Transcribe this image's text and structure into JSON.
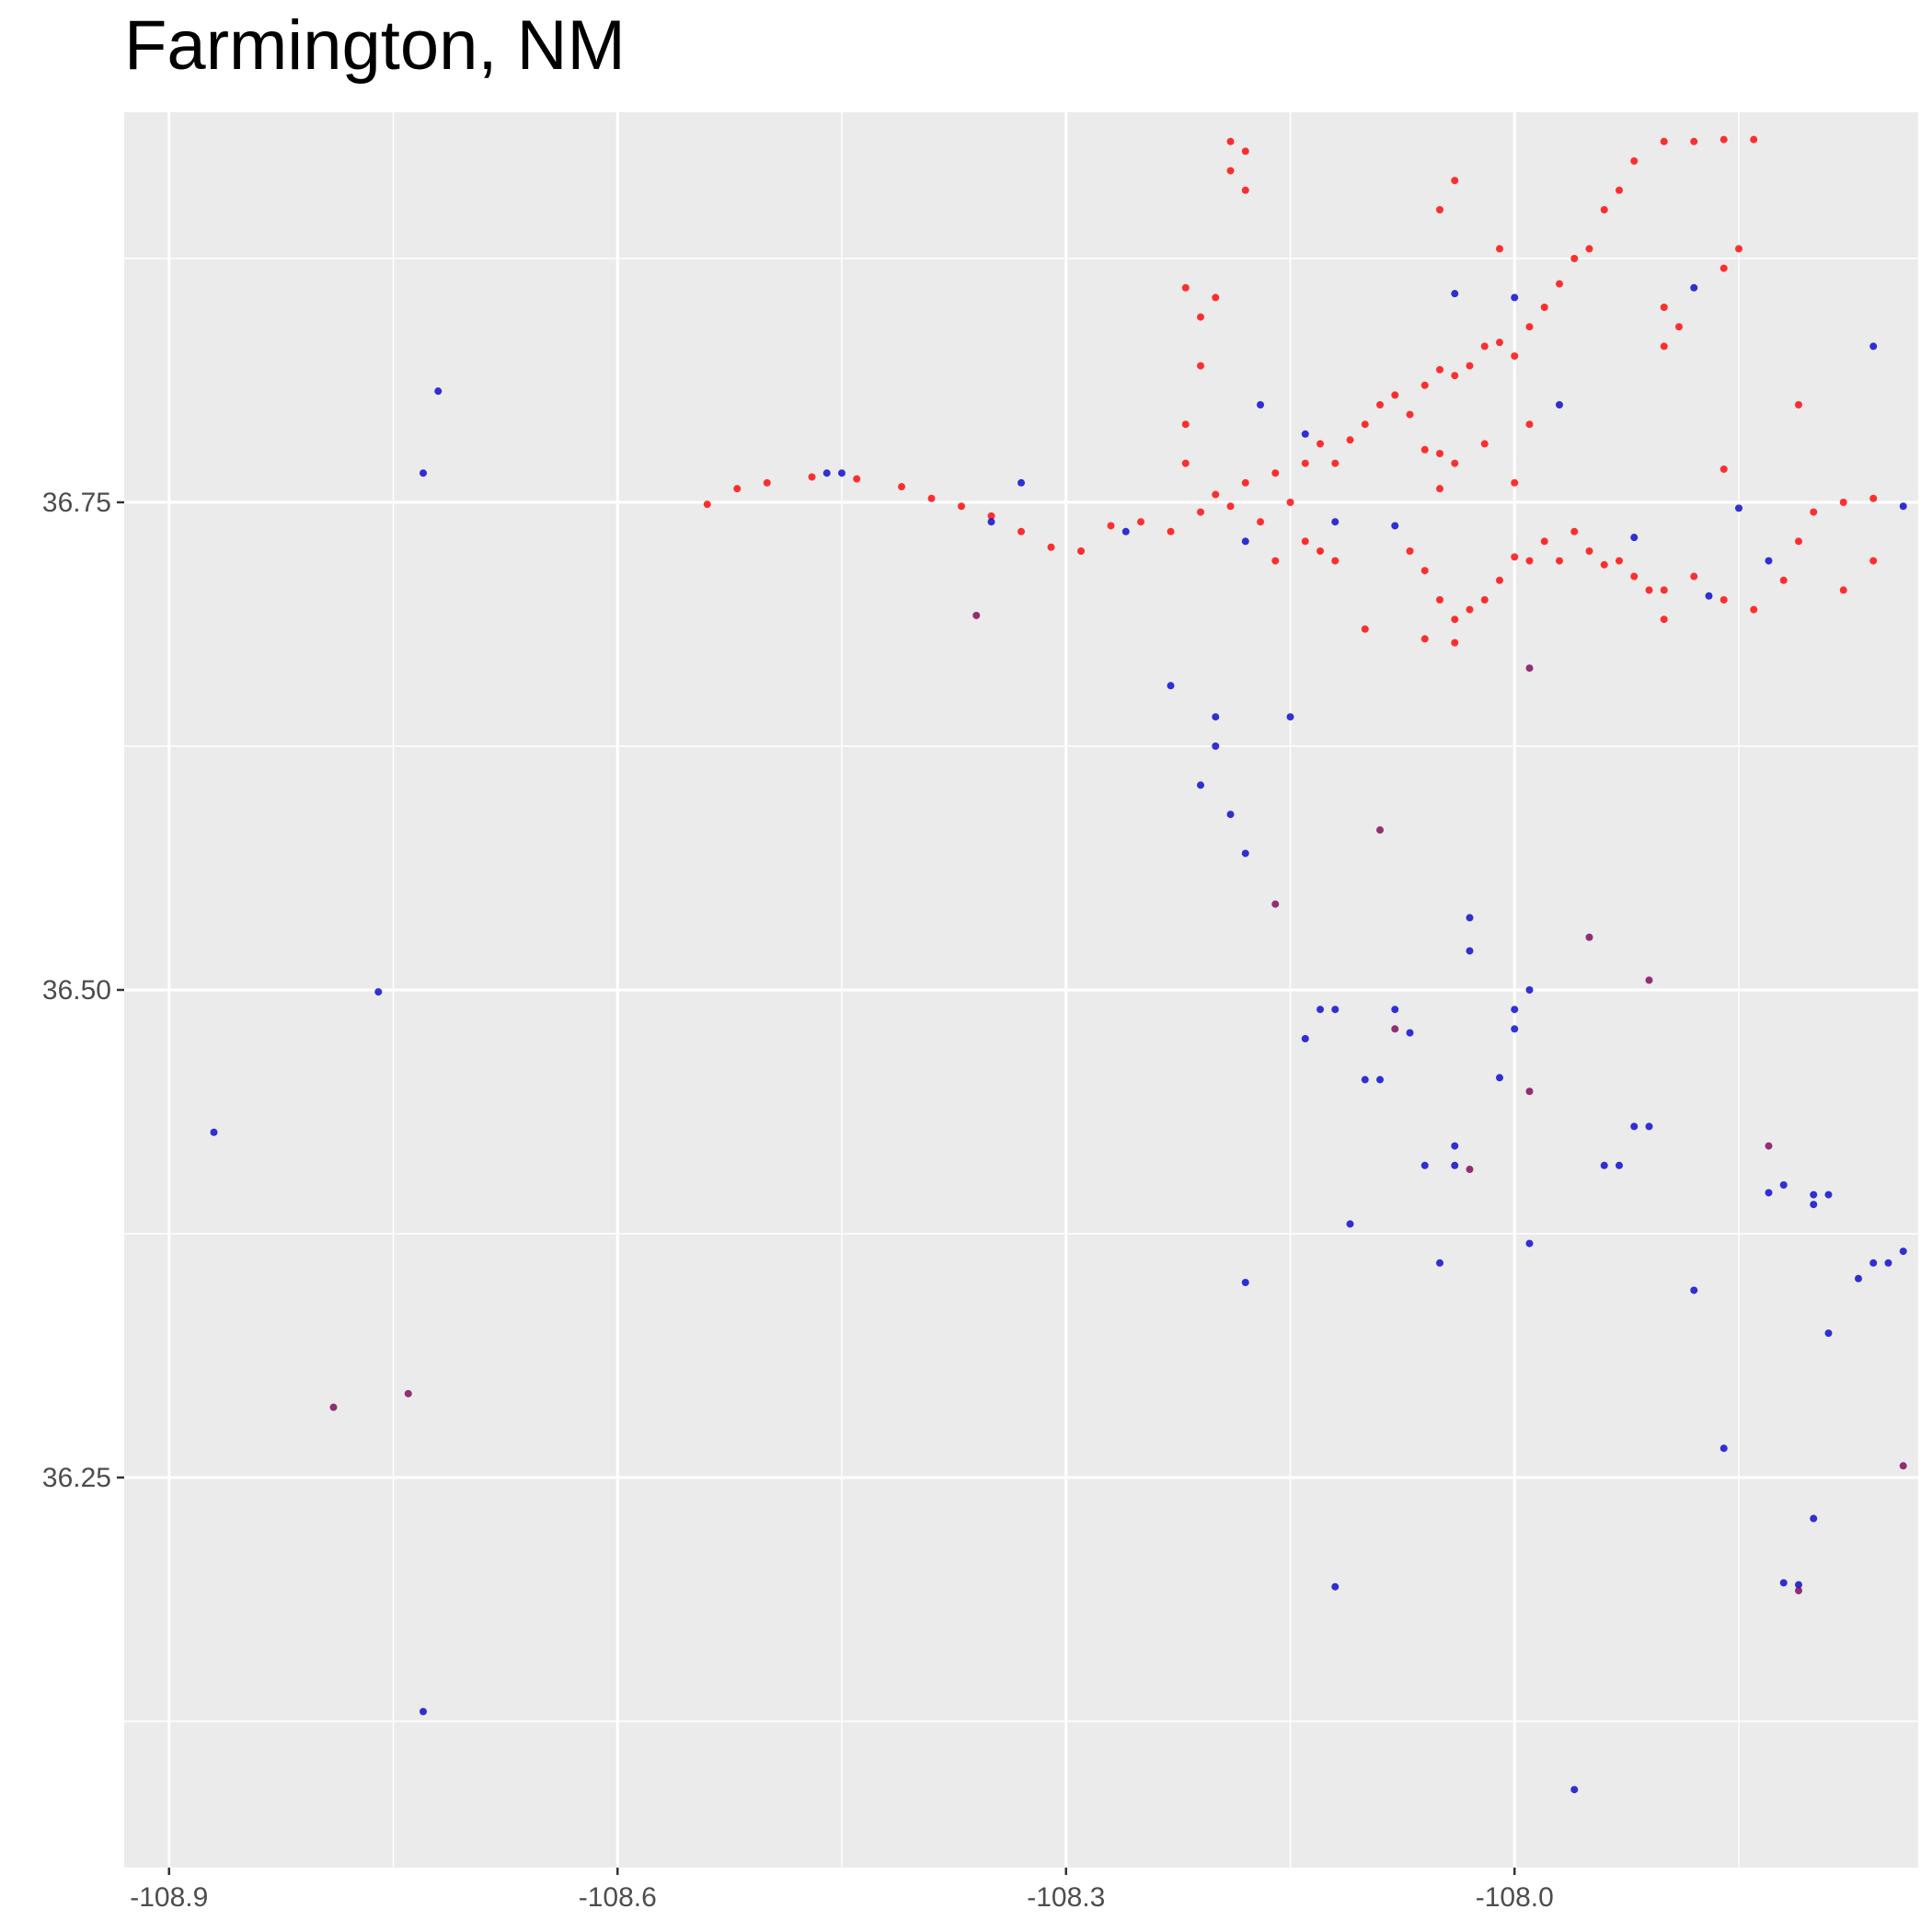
{
  "chart_data": {
    "type": "scatter",
    "title": "Farmington, NM",
    "xlabel": "",
    "ylabel": "",
    "xlim": [
      -108.93,
      -107.73
    ],
    "ylim": [
      36.05,
      36.95
    ],
    "x_ticks": [
      -108.9,
      -108.6,
      -108.3,
      -108.0
    ],
    "x_tick_labels": [
      "-108.9",
      "-108.6",
      "-108.3",
      "-108.0"
    ],
    "y_ticks": [
      36.25,
      36.5,
      36.75
    ],
    "y_tick_labels": [
      "36.25",
      "36.50",
      "36.75"
    ],
    "grid": true,
    "legend": "none",
    "colors": {
      "panel": "#ebebeb",
      "grid": "#ffffff",
      "red": "#ff0000",
      "blue": "#0000cc",
      "purple": "#7a0055"
    },
    "series": [
      {
        "color": "#ff0000",
        "points": [
          [
            -108.54,
            36.749
          ],
          [
            -108.52,
            36.757
          ],
          [
            -108.5,
            36.76
          ],
          [
            -108.47,
            36.763
          ],
          [
            -108.44,
            36.762
          ],
          [
            -108.41,
            36.758
          ],
          [
            -108.39,
            36.752
          ],
          [
            -108.37,
            36.748
          ],
          [
            -108.35,
            36.743
          ],
          [
            -108.33,
            36.735
          ],
          [
            -108.31,
            36.727
          ],
          [
            -108.29,
            36.725
          ],
          [
            -108.27,
            36.738
          ],
          [
            -108.25,
            36.74
          ],
          [
            -108.23,
            36.735
          ],
          [
            -108.21,
            36.745
          ],
          [
            -108.2,
            36.754
          ],
          [
            -108.19,
            36.748
          ],
          [
            -108.18,
            36.76
          ],
          [
            -108.17,
            36.74
          ],
          [
            -108.16,
            36.765
          ],
          [
            -108.15,
            36.75
          ],
          [
            -108.14,
            36.77
          ],
          [
            -108.13,
            36.78
          ],
          [
            -108.12,
            36.77
          ],
          [
            -108.11,
            36.782
          ],
          [
            -108.1,
            36.79
          ],
          [
            -108.09,
            36.8
          ],
          [
            -108.08,
            36.805
          ],
          [
            -108.07,
            36.795
          ],
          [
            -108.06,
            36.81
          ],
          [
            -108.05,
            36.818
          ],
          [
            -108.04,
            36.815
          ],
          [
            -108.03,
            36.82
          ],
          [
            -108.02,
            36.83
          ],
          [
            -108.01,
            36.832
          ],
          [
            -108.0,
            36.825
          ],
          [
            -107.99,
            36.84
          ],
          [
            -107.98,
            36.85
          ],
          [
            -107.97,
            36.862
          ],
          [
            -107.96,
            36.875
          ],
          [
            -107.95,
            36.88
          ],
          [
            -107.94,
            36.9
          ],
          [
            -107.93,
            36.91
          ],
          [
            -107.92,
            36.925
          ],
          [
            -107.9,
            36.935
          ],
          [
            -107.88,
            36.935
          ],
          [
            -107.86,
            36.936
          ],
          [
            -107.84,
            36.936
          ],
          [
            -108.19,
            36.935
          ],
          [
            -108.18,
            36.93
          ],
          [
            -108.19,
            36.92
          ],
          [
            -108.18,
            36.91
          ],
          [
            -108.2,
            36.855
          ],
          [
            -108.21,
            36.845
          ],
          [
            -108.22,
            36.86
          ],
          [
            -108.21,
            36.82
          ],
          [
            -108.22,
            36.79
          ],
          [
            -108.22,
            36.77
          ],
          [
            -108.07,
            36.725
          ],
          [
            -108.06,
            36.715
          ],
          [
            -108.05,
            36.7
          ],
          [
            -108.04,
            36.69
          ],
          [
            -108.03,
            36.695
          ],
          [
            -108.02,
            36.7
          ],
          [
            -108.01,
            36.71
          ],
          [
            -108.0,
            36.722
          ],
          [
            -107.99,
            36.72
          ],
          [
            -107.98,
            36.73
          ],
          [
            -107.97,
            36.72
          ],
          [
            -107.96,
            36.735
          ],
          [
            -107.95,
            36.725
          ],
          [
            -107.94,
            36.718
          ],
          [
            -107.93,
            36.72
          ],
          [
            -107.92,
            36.712
          ],
          [
            -107.91,
            36.705
          ],
          [
            -107.9,
            36.705
          ],
          [
            -107.88,
            36.712
          ],
          [
            -107.86,
            36.7
          ],
          [
            -107.84,
            36.695
          ],
          [
            -107.82,
            36.71
          ],
          [
            -107.81,
            36.73
          ],
          [
            -107.8,
            36.745
          ],
          [
            -107.78,
            36.75
          ],
          [
            -107.76,
            36.752
          ],
          [
            -107.78,
            36.705
          ],
          [
            -107.81,
            36.8
          ],
          [
            -108.06,
            36.777
          ],
          [
            -108.05,
            36.775
          ],
          [
            -108.04,
            36.77
          ],
          [
            -108.05,
            36.757
          ],
          [
            -107.99,
            36.79
          ],
          [
            -108.02,
            36.78
          ],
          [
            -108.0,
            36.76
          ],
          [
            -107.9,
            36.85
          ],
          [
            -107.89,
            36.84
          ],
          [
            -107.9,
            36.83
          ],
          [
            -107.85,
            36.88
          ],
          [
            -107.86,
            36.87
          ],
          [
            -108.04,
            36.915
          ],
          [
            -108.05,
            36.9
          ],
          [
            -108.01,
            36.88
          ],
          [
            -107.86,
            36.767
          ],
          [
            -108.13,
            36.725
          ],
          [
            -108.12,
            36.72
          ],
          [
            -108.14,
            36.73
          ],
          [
            -108.16,
            36.72
          ],
          [
            -108.06,
            36.68
          ],
          [
            -108.04,
            36.678
          ],
          [
            -107.9,
            36.69
          ],
          [
            -107.76,
            36.72
          ],
          [
            -108.1,
            36.685
          ]
        ]
      },
      {
        "color": "#0000cc",
        "points": [
          [
            -108.72,
            36.807
          ],
          [
            -108.73,
            36.765
          ],
          [
            -108.76,
            36.499
          ],
          [
            -108.87,
            36.427
          ],
          [
            -108.73,
            36.13
          ],
          [
            -108.23,
            36.656
          ],
          [
            -108.2,
            36.64
          ],
          [
            -108.15,
            36.64
          ],
          [
            -108.2,
            36.625
          ],
          [
            -108.21,
            36.605
          ],
          [
            -108.19,
            36.59
          ],
          [
            -108.18,
            36.57
          ],
          [
            -108.13,
            36.49
          ],
          [
            -108.12,
            36.49
          ],
          [
            -108.14,
            36.475
          ],
          [
            -108.08,
            36.49
          ],
          [
            -108.1,
            36.454
          ],
          [
            -108.09,
            36.454
          ],
          [
            -108.04,
            36.42
          ],
          [
            -108.07,
            36.478
          ],
          [
            -108.06,
            36.41
          ],
          [
            -108.04,
            36.41
          ],
          [
            -108.03,
            36.52
          ],
          [
            -108.03,
            36.537
          ],
          [
            -108.0,
            36.48
          ],
          [
            -108.0,
            36.49
          ],
          [
            -108.01,
            36.455
          ],
          [
            -107.99,
            36.5
          ],
          [
            -107.93,
            36.41
          ],
          [
            -107.94,
            36.41
          ],
          [
            -107.91,
            36.43
          ],
          [
            -107.92,
            36.43
          ],
          [
            -107.99,
            36.37
          ],
          [
            -108.05,
            36.36
          ],
          [
            -108.11,
            36.38
          ],
          [
            -108.18,
            36.35
          ],
          [
            -107.88,
            36.346
          ],
          [
            -107.86,
            36.265
          ],
          [
            -107.82,
            36.4
          ],
          [
            -107.83,
            36.396
          ],
          [
            -107.8,
            36.395
          ],
          [
            -107.79,
            36.395
          ],
          [
            -107.8,
            36.39
          ],
          [
            -107.76,
            36.36
          ],
          [
            -107.75,
            36.36
          ],
          [
            -107.77,
            36.352
          ],
          [
            -107.74,
            36.366
          ],
          [
            -107.79,
            36.324
          ],
          [
            -107.8,
            36.229
          ],
          [
            -107.82,
            36.196
          ],
          [
            -107.81,
            36.195
          ],
          [
            -108.12,
            36.194
          ],
          [
            -107.96,
            36.09
          ],
          [
            -107.76,
            36.83
          ],
          [
            -107.85,
            36.747
          ],
          [
            -108.45,
            36.765
          ],
          [
            -108.46,
            36.765
          ],
          [
            -108.35,
            36.74
          ],
          [
            -108.33,
            36.76
          ],
          [
            -108.26,
            36.735
          ],
          [
            -108.18,
            36.73
          ],
          [
            -108.12,
            36.74
          ],
          [
            -108.08,
            36.738
          ],
          [
            -107.83,
            36.72
          ],
          [
            -107.74,
            36.748
          ],
          [
            -108.17,
            36.8
          ],
          [
            -108.0,
            36.855
          ],
          [
            -107.88,
            36.86
          ],
          [
            -108.14,
            36.785
          ],
          [
            -108.04,
            36.857
          ],
          [
            -107.97,
            36.8
          ],
          [
            -107.92,
            36.732
          ],
          [
            -107.87,
            36.702
          ]
        ]
      },
      {
        "color": "#7a0055",
        "points": [
          [
            -108.79,
            36.286
          ],
          [
            -108.74,
            36.293
          ],
          [
            -108.36,
            36.692
          ],
          [
            -108.16,
            36.544
          ],
          [
            -108.09,
            36.582
          ],
          [
            -107.95,
            36.527
          ],
          [
            -107.91,
            36.505
          ],
          [
            -107.99,
            36.448
          ],
          [
            -108.03,
            36.408
          ],
          [
            -107.74,
            36.256
          ],
          [
            -107.83,
            36.42
          ],
          [
            -107.81,
            36.192
          ],
          [
            -108.08,
            36.48
          ],
          [
            -107.99,
            36.665
          ]
        ]
      }
    ]
  }
}
